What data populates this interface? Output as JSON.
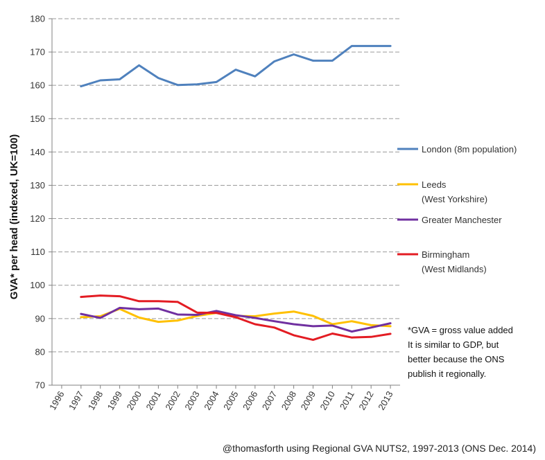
{
  "chart_data": {
    "type": "line",
    "title": "",
    "xlabel": "",
    "ylabel": "GVA* per head (indexed, UK=100)",
    "ylim": [
      70,
      180
    ],
    "yticks": [
      70,
      80,
      90,
      100,
      110,
      120,
      130,
      140,
      150,
      160,
      170,
      180
    ],
    "categories": [
      "1996",
      "1997",
      "1998",
      "1999",
      "2000",
      "2001",
      "2002",
      "2003",
      "2004",
      "2005",
      "2006",
      "2007",
      "2008",
      "2009",
      "2010",
      "2011",
      "2012",
      "2013"
    ],
    "grid": "horizontal dashed",
    "legend_position": "right",
    "series": [
      {
        "name": "London (8m population)",
        "color": "#4f81bd",
        "values": [
          null,
          159.7,
          161.5,
          161.8,
          166.0,
          162.2,
          160.1,
          160.3,
          161.0,
          164.7,
          162.7,
          167.2,
          169.3,
          167.4,
          167.4,
          171.8,
          171.8,
          171.8
        ]
      },
      {
        "name": "Leeds\n(West Yorkshire)",
        "color": "#ffc000",
        "values": [
          null,
          90.4,
          90.7,
          92.9,
          90.3,
          89.0,
          89.4,
          90.8,
          91.7,
          90.8,
          90.7,
          91.5,
          92.1,
          90.8,
          88.3,
          89.2,
          88.0,
          87.7
        ]
      },
      {
        "name": "Greater Manchester",
        "color": "#7030a0",
        "values": [
          null,
          91.4,
          90.2,
          93.2,
          92.8,
          93.0,
          91.2,
          91.1,
          92.3,
          91.0,
          90.2,
          89.2,
          88.3,
          87.7,
          87.9,
          86.1,
          87.3,
          88.6
        ]
      },
      {
        "name": "Birmingham\n(West Midlands)",
        "color": "#e31c23",
        "values": [
          null,
          96.5,
          96.9,
          96.7,
          95.2,
          95.2,
          95.0,
          91.8,
          91.7,
          90.4,
          88.3,
          87.3,
          85.0,
          83.6,
          85.5,
          84.3,
          84.5,
          85.4
        ]
      }
    ],
    "annotation": "*GVA = gross value added\nIt is similar to GDP, but\nbetter because the ONS\npublish it regionally.",
    "source": "@thomasforth using Regional GVA NUTS2, 1997-2013 (ONS Dec. 2014)"
  }
}
